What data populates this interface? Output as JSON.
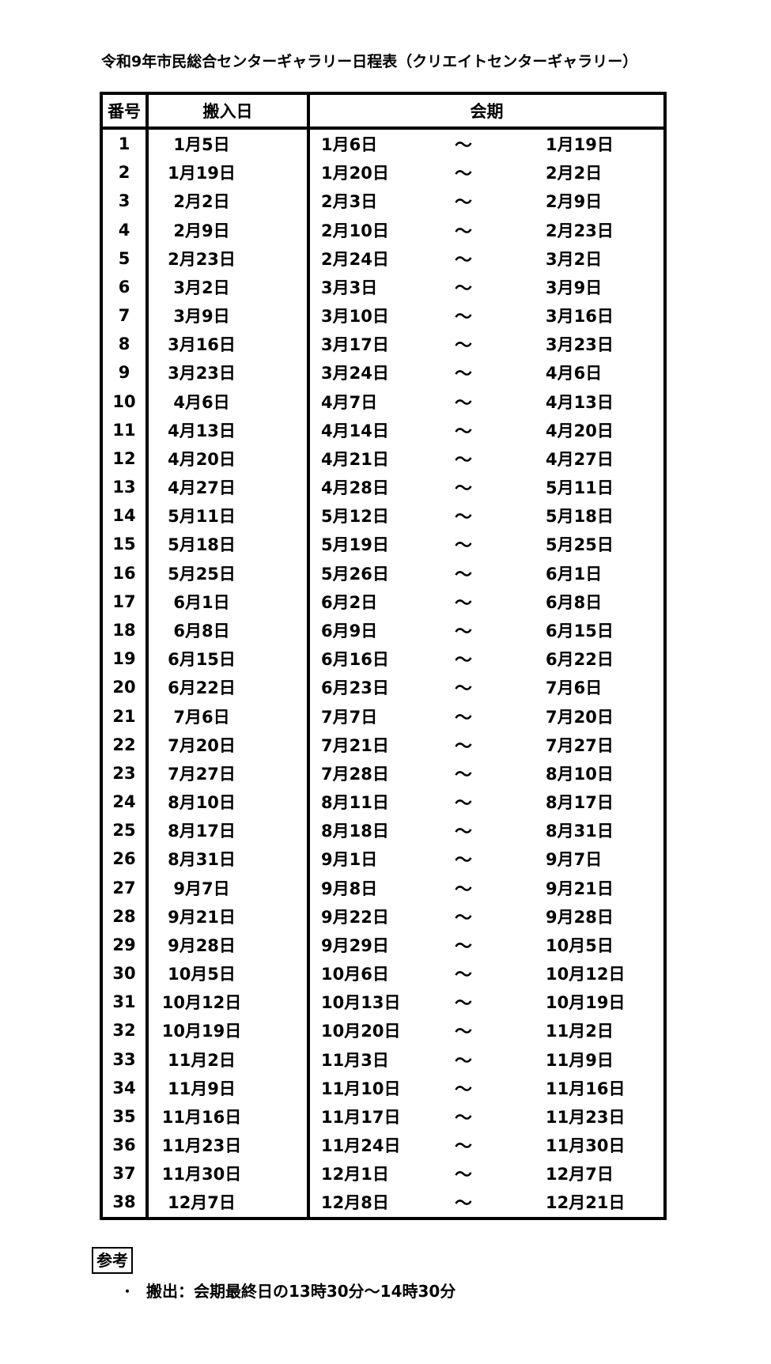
{
  "title": "令和9年市民総合センターギャラリー日程表（クリエイトセンターギャラリー）",
  "table": {
    "headers": {
      "number": "番号",
      "carry_in": "搬入日",
      "period": "会期"
    },
    "tilde": "～",
    "rows": [
      {
        "no": "1",
        "carry_in": "1月5日",
        "start": "1月6日",
        "end": "1月19日"
      },
      {
        "no": "2",
        "carry_in": "1月19日",
        "start": "1月20日",
        "end": "2月2日"
      },
      {
        "no": "3",
        "carry_in": "2月2日",
        "start": "2月3日",
        "end": "2月9日"
      },
      {
        "no": "4",
        "carry_in": "2月9日",
        "start": "2月10日",
        "end": "2月23日"
      },
      {
        "no": "5",
        "carry_in": "2月23日",
        "start": "2月24日",
        "end": "3月2日"
      },
      {
        "no": "6",
        "carry_in": "3月2日",
        "start": "3月3日",
        "end": "3月9日"
      },
      {
        "no": "7",
        "carry_in": "3月9日",
        "start": "3月10日",
        "end": "3月16日"
      },
      {
        "no": "8",
        "carry_in": "3月16日",
        "start": "3月17日",
        "end": "3月23日"
      },
      {
        "no": "9",
        "carry_in": "3月23日",
        "start": "3月24日",
        "end": "4月6日"
      },
      {
        "no": "10",
        "carry_in": "4月6日",
        "start": "4月7日",
        "end": "4月13日"
      },
      {
        "no": "11",
        "carry_in": "4月13日",
        "start": "4月14日",
        "end": "4月20日"
      },
      {
        "no": "12",
        "carry_in": "4月20日",
        "start": "4月21日",
        "end": "4月27日"
      },
      {
        "no": "13",
        "carry_in": "4月27日",
        "start": "4月28日",
        "end": "5月11日"
      },
      {
        "no": "14",
        "carry_in": "5月11日",
        "start": "5月12日",
        "end": "5月18日"
      },
      {
        "no": "15",
        "carry_in": "5月18日",
        "start": "5月19日",
        "end": "5月25日"
      },
      {
        "no": "16",
        "carry_in": "5月25日",
        "start": "5月26日",
        "end": "6月1日"
      },
      {
        "no": "17",
        "carry_in": "6月1日",
        "start": "6月2日",
        "end": "6月8日"
      },
      {
        "no": "18",
        "carry_in": "6月8日",
        "start": "6月9日",
        "end": "6月15日"
      },
      {
        "no": "19",
        "carry_in": "6月15日",
        "start": "6月16日",
        "end": "6月22日"
      },
      {
        "no": "20",
        "carry_in": "6月22日",
        "start": "6月23日",
        "end": "7月6日"
      },
      {
        "no": "21",
        "carry_in": "7月6日",
        "start": "7月7日",
        "end": "7月20日"
      },
      {
        "no": "22",
        "carry_in": "7月20日",
        "start": "7月21日",
        "end": "7月27日"
      },
      {
        "no": "23",
        "carry_in": "7月27日",
        "start": "7月28日",
        "end": "8月10日"
      },
      {
        "no": "24",
        "carry_in": "8月10日",
        "start": "8月11日",
        "end": "8月17日"
      },
      {
        "no": "25",
        "carry_in": "8月17日",
        "start": "8月18日",
        "end": "8月31日"
      },
      {
        "no": "26",
        "carry_in": "8月31日",
        "start": "9月1日",
        "end": "9月7日"
      },
      {
        "no": "27",
        "carry_in": "9月7日",
        "start": "9月8日",
        "end": "9月21日"
      },
      {
        "no": "28",
        "carry_in": "9月21日",
        "start": "9月22日",
        "end": "9月28日"
      },
      {
        "no": "29",
        "carry_in": "9月28日",
        "start": "9月29日",
        "end": "10月5日"
      },
      {
        "no": "30",
        "carry_in": "10月5日",
        "start": "10月6日",
        "end": "10月12日"
      },
      {
        "no": "31",
        "carry_in": "10月12日",
        "start": "10月13日",
        "end": "10月19日"
      },
      {
        "no": "32",
        "carry_in": "10月19日",
        "start": "10月20日",
        "end": "11月2日"
      },
      {
        "no": "33",
        "carry_in": "11月2日",
        "start": "11月3日",
        "end": "11月9日"
      },
      {
        "no": "34",
        "carry_in": "11月9日",
        "start": "11月10日",
        "end": "11月16日"
      },
      {
        "no": "35",
        "carry_in": "11月16日",
        "start": "11月17日",
        "end": "11月23日"
      },
      {
        "no": "36",
        "carry_in": "11月23日",
        "start": "11月24日",
        "end": "11月30日"
      },
      {
        "no": "37",
        "carry_in": "11月30日",
        "start": "12月1日",
        "end": "12月7日"
      },
      {
        "no": "38",
        "carry_in": "12月7日",
        "start": "12月8日",
        "end": "12月21日"
      }
    ]
  },
  "footer": {
    "ref_label": "参考",
    "bullet": "・",
    "note": "搬出：会期最終日の13時30分～14時30分"
  }
}
